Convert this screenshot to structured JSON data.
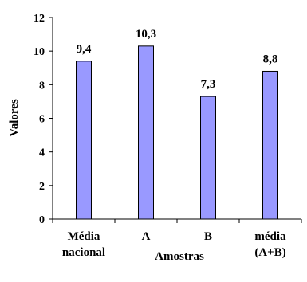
{
  "chart_data": {
    "type": "bar",
    "title": "",
    "xlabel": "Amostras",
    "ylabel": "Valores",
    "categories": [
      [
        "Média",
        "nacional"
      ],
      [
        "A"
      ],
      [
        "B"
      ],
      [
        "média",
        "(A+B)"
      ]
    ],
    "values": [
      9.4,
      10.3,
      7.3,
      8.8
    ],
    "data_labels": [
      "9,4",
      "10,3",
      "7,3",
      "8,8"
    ],
    "ylim": [
      0,
      12
    ],
    "yticks": [
      0,
      2,
      4,
      6,
      8,
      10,
      12
    ],
    "ytick_labels": [
      "0",
      "2",
      "4",
      "6",
      "8",
      "10",
      "12"
    ],
    "grid": false,
    "legend": "none",
    "colors": {
      "bar_fill": "#9999ff",
      "bar_stroke": "#000000",
      "axis": "#000000"
    }
  }
}
